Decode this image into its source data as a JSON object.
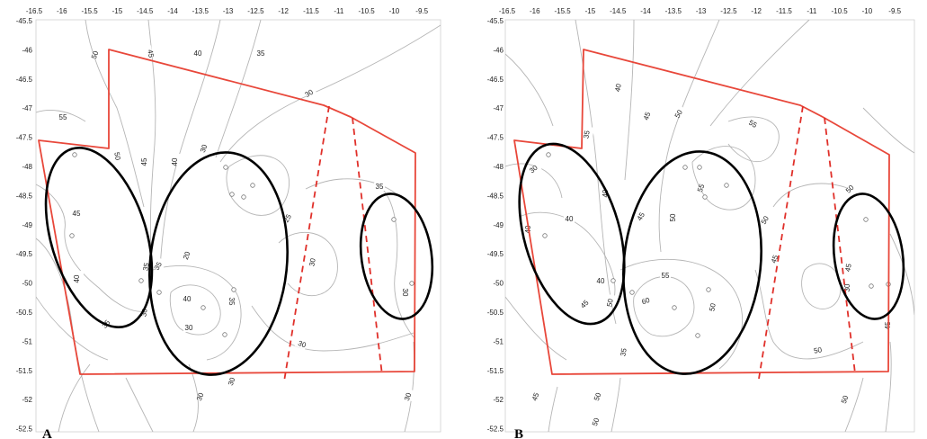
{
  "panels": [
    {
      "label": "A",
      "xticks": [
        "-16.5",
        "-16",
        "-15.5",
        "-15",
        "-14.5",
        "-14",
        "-13.5",
        "-13",
        "-12.5",
        "-12",
        "-11.5",
        "-11",
        "-10.5",
        "-10",
        "-9.5"
      ],
      "yticks": [
        "-45.5",
        "-46",
        "-46.5",
        "-47",
        "-47.5",
        "-48",
        "-48.5",
        "-49",
        "-49.5",
        "-50",
        "-50.5",
        "-51",
        "-51.5",
        "-52",
        "-52.5"
      ],
      "contour_labels": [
        "50",
        "45",
        "40",
        "35",
        "55",
        "50",
        "45",
        "40",
        "45",
        "40",
        "35",
        "35",
        "30",
        "30",
        "40",
        "35",
        "20",
        "25",
        "30",
        "30",
        "35",
        "30",
        "30",
        "35",
        "30",
        "30",
        "30",
        "30"
      ]
    },
    {
      "label": "B",
      "xticks": [
        "-16.5",
        "-16",
        "-15.5",
        "-15",
        "-14.5",
        "-14",
        "-13.5",
        "-13",
        "-12.5",
        "-12",
        "-11.5",
        "-11",
        "-10.5",
        "-10",
        "-9.5"
      ],
      "yticks": [
        "-45.5",
        "-46",
        "-46.5",
        "-47",
        "-47.5",
        "-48",
        "-48.5",
        "-49",
        "-49.5",
        "-50",
        "-50.5",
        "-51",
        "-51.5",
        "-52",
        "-52.5"
      ],
      "contour_labels": [
        "40",
        "45",
        "50",
        "55",
        "35",
        "30",
        "40",
        "40",
        "45",
        "50",
        "55",
        "50",
        "40",
        "40",
        "45",
        "50",
        "55",
        "60",
        "50",
        "35",
        "45",
        "50",
        "45",
        "30",
        "50",
        "45",
        "50",
        "50",
        "45",
        "50"
      ]
    }
  ],
  "colors": {
    "boundary": "#e8473a",
    "dashed": "#e0302a",
    "ellipse": "#000000",
    "contour": "#b5b5b5"
  }
}
